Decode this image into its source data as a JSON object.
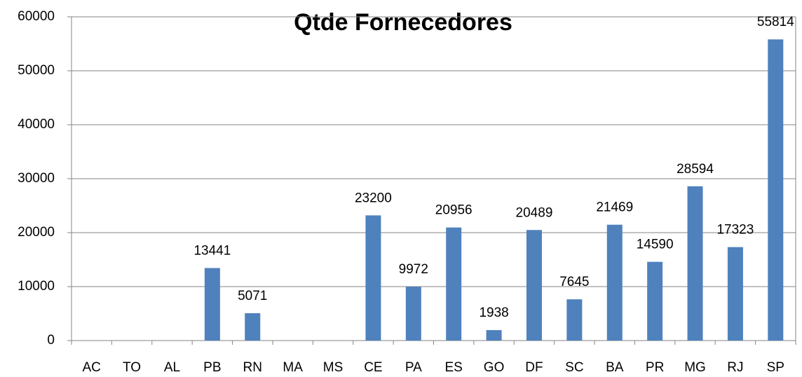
{
  "chart_data": {
    "type": "bar",
    "title": "Qtde Fornecedores",
    "categories": [
      "AC",
      "TO",
      "AL",
      "PB",
      "RN",
      "MA",
      "MS",
      "CE",
      "PA",
      "ES",
      "GO",
      "DF",
      "SC",
      "BA",
      "PR",
      "MG",
      "RJ",
      "SP"
    ],
    "values": [
      null,
      null,
      null,
      13441,
      5071,
      null,
      null,
      23200,
      9972,
      20956,
      1938,
      20489,
      7645,
      21469,
      14590,
      28594,
      17323,
      55814
    ],
    "color": "#4f81bd",
    "ylim": [
      0,
      60000
    ],
    "yticks": [
      0,
      10000,
      20000,
      30000,
      40000,
      50000,
      60000
    ],
    "grid": true
  }
}
